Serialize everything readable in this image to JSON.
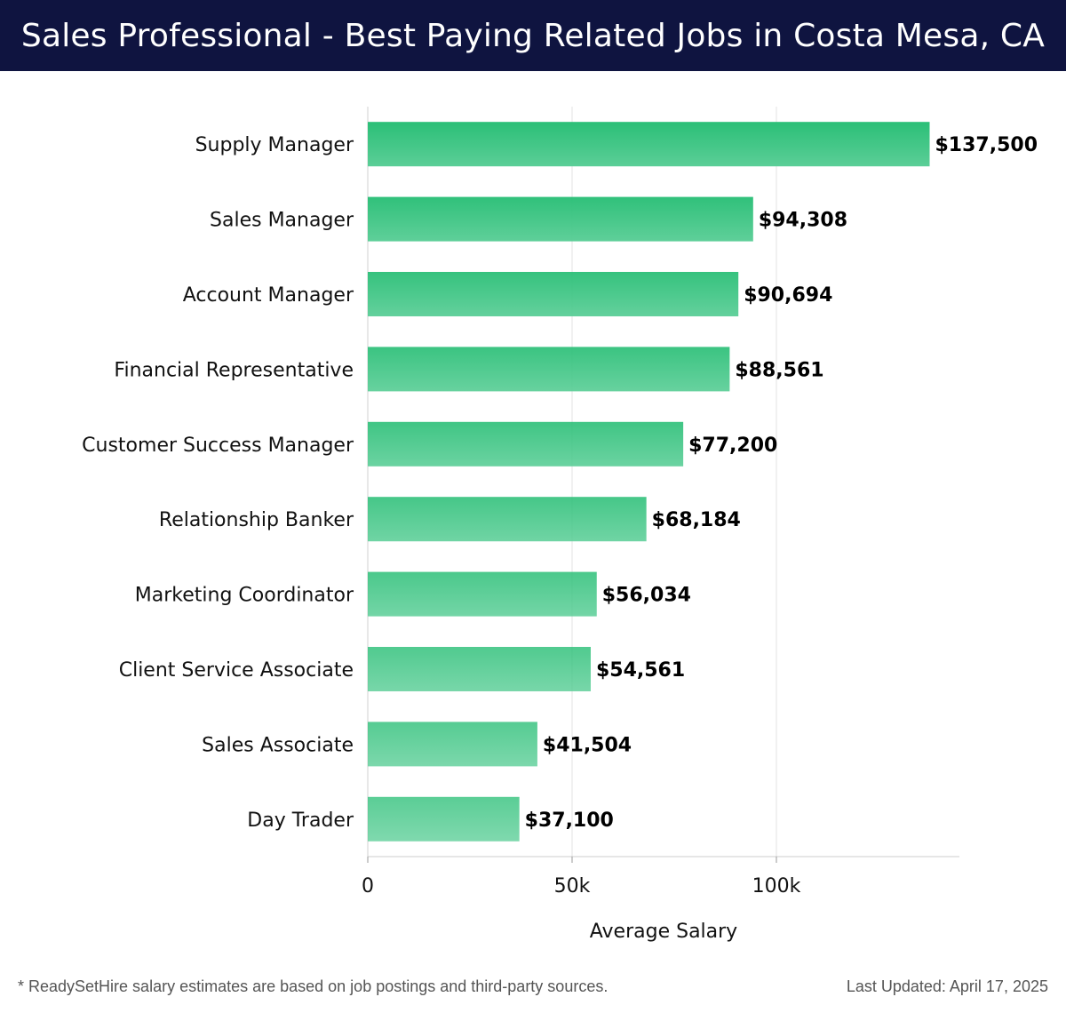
{
  "header": {
    "title": "Sales Professional - Best Paying Related Jobs in Costa Mesa, CA"
  },
  "footer": {
    "note": "* ReadySetHire salary estimates are based on job postings and third-party sources.",
    "updated": "Last Updated: April 17, 2025"
  },
  "colors": {
    "header_bg": "#0f1440",
    "bar_top": "#2bbf77",
    "bar_bottom": "#5bce97",
    "grid": "#e3e3e3"
  },
  "chart_data": {
    "type": "bar",
    "orientation": "horizontal",
    "categories": [
      "Supply Manager",
      "Sales Manager",
      "Account Manager",
      "Financial Representative",
      "Customer Success Manager",
      "Relationship Banker",
      "Marketing Coordinator",
      "Client Service Associate",
      "Sales Associate",
      "Day Trader"
    ],
    "values": [
      137500,
      94308,
      90694,
      88561,
      77200,
      68184,
      56034,
      54561,
      41504,
      37100
    ],
    "value_labels": [
      "$137,500",
      "$94,308",
      "$90,694",
      "$88,561",
      "$77,200",
      "$68,184",
      "$56,034",
      "$54,561",
      "$41,504",
      "$37,100"
    ],
    "xlabel": "Average Salary",
    "ylabel": "",
    "xlim": [
      0,
      145000
    ],
    "x_ticks": [
      0,
      50000,
      100000
    ],
    "x_tick_labels": [
      "0",
      "50k",
      "100k"
    ],
    "grid": "vertical"
  }
}
